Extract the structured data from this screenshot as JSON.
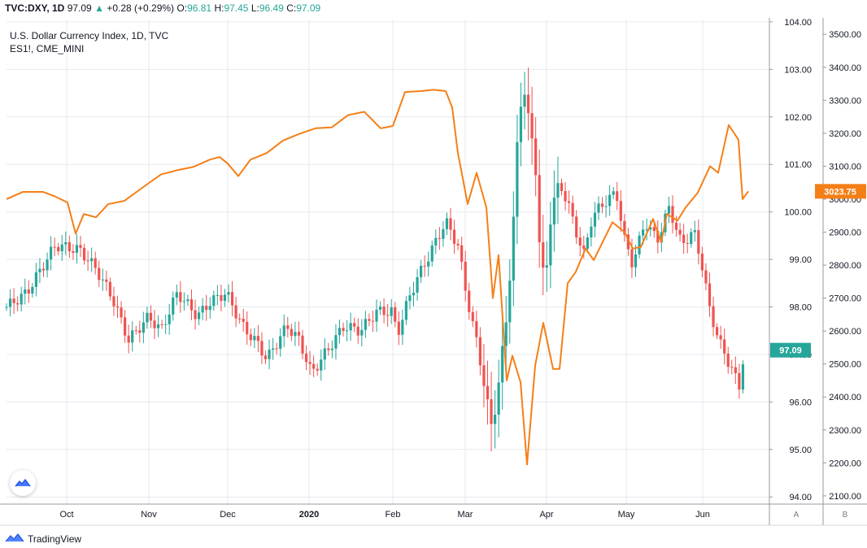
{
  "header": {
    "symbol": "TVC:DXY, 1D",
    "last": "97.09",
    "arrow": "▲",
    "change": "+0.28 (+0.29%)",
    "o_label": "O:",
    "o": "96.81",
    "h_label": "H:",
    "h": "97.45",
    "l_label": "L:",
    "l": "96.49",
    "c_label": "C:",
    "c": "97.09"
  },
  "legend": {
    "main": "U.S. Dollar Currency Index, 1D, TVC",
    "compare": "ES1!, CME_MINI"
  },
  "footer": {
    "brand": "TradingView"
  },
  "icons": {
    "logo": "tradingview-logo-icon",
    "badge": "tradingview-badge-icon"
  },
  "colors": {
    "up": "#26a69a",
    "down": "#ef5350",
    "compare": "#f57f17",
    "grid": "#e6e9ef"
  },
  "chart_data": {
    "type": "line",
    "x_ticks": [
      "Oct",
      "Nov",
      "Dec",
      "2020",
      "Feb",
      "Mar",
      "Apr",
      "May",
      "Jun"
    ],
    "axis_a": {
      "name": "A",
      "ticks": [
        "104.00",
        "103.00",
        "102.00",
        "101.00",
        "100.00",
        "99.00",
        "98.00",
        "97.00",
        "96.00",
        "95.00",
        "94.00"
      ],
      "range": [
        93.85,
        104.05
      ],
      "last_value": "97.09"
    },
    "axis_b": {
      "name": "B",
      "ticks": [
        "3500.00",
        "3400.00",
        "3300.00",
        "3200.00",
        "3100.00",
        "3000.00",
        "2900.00",
        "2800.00",
        "2700.00",
        "2600.00",
        "2500.00",
        "2400.00",
        "2300.00",
        "2200.00",
        "2100.00"
      ],
      "range": [
        2075,
        3545
      ],
      "last_value": "3023.75"
    },
    "series": [
      {
        "kind": "candlestick",
        "axis": "A",
        "close_anchors": [
          [
            0,
            98.0
          ],
          [
            25,
            98.3
          ],
          [
            60,
            99.3
          ],
          [
            90,
            99.2
          ],
          [
            110,
            98.8
          ],
          [
            130,
            98.2
          ],
          [
            150,
            97.3
          ],
          [
            175,
            97.8
          ],
          [
            190,
            97.5
          ],
          [
            210,
            98.3
          ],
          [
            235,
            97.8
          ],
          [
            250,
            98.1
          ],
          [
            270,
            98.3
          ],
          [
            290,
            97.6
          ],
          [
            310,
            97.2
          ],
          [
            320,
            96.9
          ],
          [
            345,
            97.6
          ],
          [
            360,
            97.3
          ],
          [
            375,
            96.6
          ],
          [
            395,
            97.1
          ],
          [
            415,
            97.6
          ],
          [
            435,
            97.5
          ],
          [
            455,
            97.9
          ],
          [
            475,
            97.9
          ],
          [
            480,
            97.4
          ],
          [
            495,
            98.2
          ],
          [
            505,
            98.6
          ],
          [
            520,
            99.1
          ],
          [
            540,
            99.8
          ],
          [
            555,
            99.3
          ],
          [
            565,
            98.3
          ],
          [
            580,
            97.1
          ],
          [
            590,
            96.1
          ],
          [
            597,
            95.4
          ],
          [
            605,
            96.4
          ],
          [
            615,
            97.8
          ],
          [
            622,
            99.4
          ],
          [
            628,
            101.4
          ],
          [
            635,
            102.8
          ],
          [
            643,
            101.8
          ],
          [
            650,
            101.1
          ],
          [
            657,
            98.8
          ],
          [
            663,
            98.6
          ],
          [
            670,
            100.1
          ],
          [
            680,
            100.6
          ],
          [
            690,
            100.2
          ],
          [
            700,
            99.6
          ],
          [
            710,
            99.1
          ],
          [
            720,
            99.9
          ],
          [
            735,
            100.2
          ],
          [
            750,
            100.4
          ],
          [
            760,
            99.4
          ],
          [
            770,
            98.9
          ],
          [
            785,
            99.8
          ],
          [
            800,
            99.4
          ],
          [
            815,
            100.1
          ],
          [
            830,
            99.3
          ],
          [
            845,
            99.6
          ],
          [
            855,
            98.9
          ],
          [
            865,
            97.9
          ],
          [
            880,
            97.1
          ],
          [
            895,
            96.6
          ],
          [
            900,
            96.2
          ],
          [
            907,
            97.09
          ]
        ]
      },
      {
        "kind": "line",
        "name": "ES1!, CME_MINI",
        "axis": "B",
        "points": [
          [
            0,
            3000
          ],
          [
            20,
            3022
          ],
          [
            45,
            3022
          ],
          [
            60,
            3008
          ],
          [
            75,
            2990
          ],
          [
            85,
            2895
          ],
          [
            95,
            2955
          ],
          [
            110,
            2945
          ],
          [
            125,
            2985
          ],
          [
            145,
            2995
          ],
          [
            170,
            3040
          ],
          [
            190,
            3075
          ],
          [
            210,
            3088
          ],
          [
            230,
            3098
          ],
          [
            250,
            3120
          ],
          [
            262,
            3128
          ],
          [
            272,
            3108
          ],
          [
            285,
            3070
          ],
          [
            300,
            3120
          ],
          [
            320,
            3140
          ],
          [
            340,
            3178
          ],
          [
            360,
            3198
          ],
          [
            380,
            3215
          ],
          [
            400,
            3218
          ],
          [
            420,
            3255
          ],
          [
            440,
            3265
          ],
          [
            460,
            3215
          ],
          [
            475,
            3222
          ],
          [
            490,
            3325
          ],
          [
            510,
            3328
          ],
          [
            525,
            3332
          ],
          [
            540,
            3328
          ],
          [
            548,
            3278
          ],
          [
            555,
            3140
          ],
          [
            567,
            2985
          ],
          [
            578,
            3080
          ],
          [
            590,
            2975
          ],
          [
            598,
            2700
          ],
          [
            605,
            2830
          ],
          [
            615,
            2450
          ],
          [
            622,
            2525
          ],
          [
            632,
            2445
          ],
          [
            640,
            2195
          ],
          [
            650,
            2495
          ],
          [
            660,
            2625
          ],
          [
            672,
            2485
          ],
          [
            680,
            2485
          ],
          [
            690,
            2745
          ],
          [
            700,
            2780
          ],
          [
            712,
            2850
          ],
          [
            722,
            2815
          ],
          [
            735,
            2880
          ],
          [
            745,
            2930
          ],
          [
            760,
            2900
          ],
          [
            770,
            2850
          ],
          [
            780,
            2855
          ],
          [
            795,
            2940
          ],
          [
            805,
            2870
          ],
          [
            812,
            2955
          ],
          [
            825,
            2935
          ],
          [
            835,
            2975
          ],
          [
            850,
            3020
          ],
          [
            865,
            3100
          ],
          [
            875,
            3080
          ],
          [
            888,
            3225
          ],
          [
            900,
            3180
          ],
          [
            905,
            3000
          ],
          [
            912,
            3023.75
          ]
        ]
      }
    ]
  }
}
